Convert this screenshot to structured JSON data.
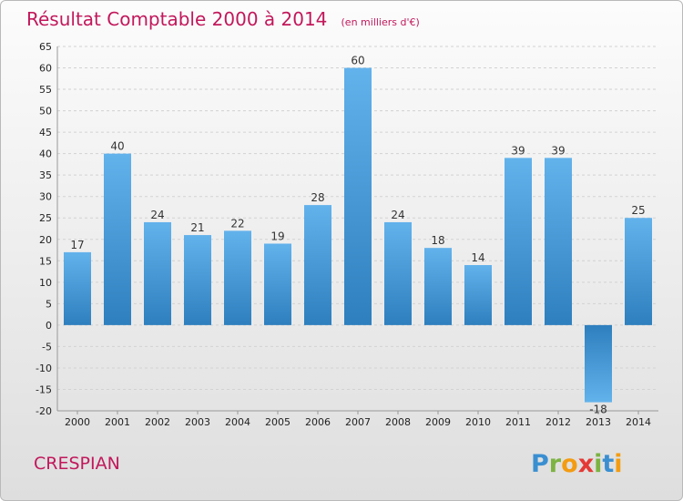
{
  "chart_data": {
    "type": "bar",
    "title": "Résultat Comptable 2000 à 2014",
    "subtitle": "(en milliers d'€)",
    "categories": [
      "2000",
      "2001",
      "2002",
      "2003",
      "2004",
      "2005",
      "2006",
      "2007",
      "2008",
      "2009",
      "2010",
      "2011",
      "2012",
      "2013",
      "2014"
    ],
    "values": [
      17,
      40,
      24,
      21,
      22,
      19,
      28,
      60,
      24,
      18,
      14,
      39,
      39,
      -18,
      25
    ],
    "ylim": [
      -20,
      65
    ],
    "yticks": [
      65,
      60,
      55,
      50,
      45,
      40,
      35,
      30,
      25,
      20,
      15,
      10,
      5,
      0,
      -5,
      -10,
      -15,
      -20
    ],
    "grid": true,
    "xlabel": "",
    "ylabel": ""
  },
  "footer": {
    "commune": "CRESPIAN",
    "logo_letters": [
      "P",
      "r",
      "o",
      "x",
      "i",
      "t",
      "i"
    ],
    "logo_colors": [
      "#3a8fd1",
      "#7cb342",
      "#f39c12",
      "#e53935",
      "#7cb342",
      "#3a8fd1",
      "#f39c12"
    ]
  },
  "colors": {
    "bar_dark": "#2e7fbe",
    "bar_light": "#62b2ec",
    "title": "#c2185b"
  }
}
